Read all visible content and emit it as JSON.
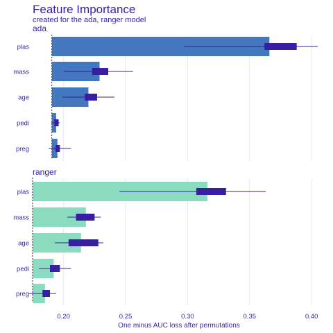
{
  "chart_data": {
    "type": "bar",
    "title": "Feature Importance",
    "subtitle": "created for the ada, ranger model",
    "xlabel": "One minus AUC loss after permutations",
    "xlim": [
      0.175,
      0.41
    ],
    "xticks": [
      "0.20",
      "0.25",
      "0.30",
      "0.35",
      "0.40"
    ],
    "xtick_values": [
      0.2,
      0.25,
      0.3,
      0.35,
      0.4
    ],
    "grid": true,
    "panels": [
      {
        "name": "ada",
        "baseline": 0.1905,
        "bar_color": "#4378bf",
        "features": [
          "plas",
          "mass",
          "age",
          "pedi",
          "preg"
        ],
        "values": [
          0.366,
          0.229,
          0.22,
          0.194,
          0.195
        ],
        "box": [
          [
            0.362,
            0.388
          ],
          [
            0.223,
            0.236
          ],
          [
            0.217,
            0.227
          ],
          [
            0.1925,
            0.196
          ],
          [
            0.1935,
            0.197
          ]
        ],
        "whisker": [
          [
            0.297,
            0.405
          ],
          [
            0.2,
            0.256
          ],
          [
            0.199,
            0.241
          ],
          [
            0.19,
            0.197
          ],
          [
            0.188,
            0.206
          ]
        ]
      },
      {
        "name": "ranger",
        "baseline": 0.175,
        "bar_color": "#8bdcbe",
        "features": [
          "plas",
          "mass",
          "age",
          "pedi",
          "preg"
        ],
        "values": [
          0.316,
          0.218,
          0.214,
          0.192,
          0.185
        ],
        "box": [
          [
            0.307,
            0.331
          ],
          [
            0.21,
            0.225
          ],
          [
            0.204,
            0.228
          ],
          [
            0.189,
            0.197
          ],
          [
            0.183,
            0.189
          ]
        ],
        "whisker": [
          [
            0.245,
            0.363
          ],
          [
            0.203,
            0.23
          ],
          [
            0.193,
            0.232
          ],
          [
            0.18,
            0.206
          ],
          [
            0.172,
            0.194
          ]
        ]
      }
    ],
    "box_color": "#371ea3",
    "text_color": "#371ea3"
  }
}
